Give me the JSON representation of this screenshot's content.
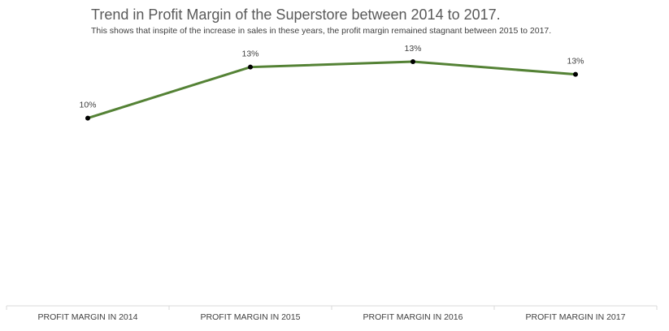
{
  "colors": {
    "line": "#548235",
    "marker": "#000000",
    "axis": "#d9d9d9"
  },
  "chart_data": {
    "type": "line",
    "title": "Trend in Profit Margin of the Superstore between 2014 to 2017.",
    "subtitle": "This shows that inspite of the increase in sales in these years, the profit margin remained stagnant between 2015 to 2017.",
    "categories": [
      "PROFIT MARGIN IN 2014",
      "PROFIT MARGIN IN 2015",
      "PROFIT MARGIN IN 2016",
      "PROFIT MARGIN IN 2017"
    ],
    "series": [
      {
        "name": "Profit Margin",
        "values": [
          10.3,
          13.1,
          13.4,
          12.7
        ],
        "labels": [
          "10%",
          "13%",
          "13%",
          "13%"
        ]
      }
    ],
    "ylim": [
      0,
      15
    ],
    "grid": false,
    "legend": "none",
    "xlabel": "",
    "ylabel": ""
  }
}
